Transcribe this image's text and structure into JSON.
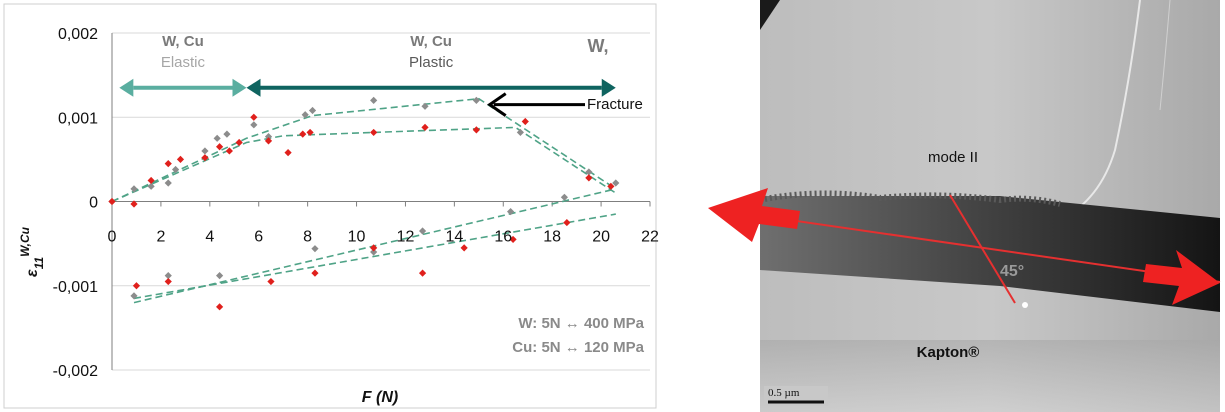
{
  "chart_data": {
    "type": "scatter",
    "x_ticks": [
      "0",
      "2",
      "4",
      "6",
      "8",
      "10",
      "12",
      "14",
      "16",
      "18",
      "20",
      "22"
    ],
    "y_ticks": [
      "0,002",
      "0,001",
      "0",
      "-0,001",
      "-0,002"
    ],
    "xlim": [
      0,
      22
    ],
    "ylim": [
      -0.002,
      0.002
    ],
    "xlabel": "F (N)",
    "ylabel": {
      "main": "ε",
      "sub": "11",
      "sup": "W,Cu"
    },
    "series": [
      {
        "color": "#8c8c8c",
        "points": [
          [
            0,
            0
          ],
          [
            0.9,
            0.00015
          ],
          [
            1.6,
            0.00018
          ],
          [
            2.3,
            0.00022
          ],
          [
            2.6,
            0.00038
          ],
          [
            3.8,
            0.0006
          ],
          [
            4.3,
            0.00075
          ],
          [
            4.7,
            0.0008
          ],
          [
            5.8,
            0.00091
          ],
          [
            6.4,
            0.00077
          ],
          [
            7.9,
            0.00103
          ],
          [
            8.2,
            0.00108
          ],
          [
            10.7,
            0.0012
          ],
          [
            12.8,
            0.00113
          ],
          [
            14.9,
            0.0012
          ],
          [
            16.7,
            0.00082
          ],
          [
            19.5,
            0.00035
          ],
          [
            20.6,
            0.00022
          ],
          [
            18.5,
            5e-05
          ],
          [
            16.3,
            -0.00012
          ],
          [
            12.7,
            -0.00035
          ],
          [
            10.7,
            -0.0006
          ],
          [
            8.3,
            -0.00056
          ],
          [
            4.4,
            -0.00088
          ],
          [
            2.3,
            -0.00088
          ],
          [
            0.9,
            -0.00112
          ]
        ]
      },
      {
        "color": "#e0201c",
        "points": [
          [
            0,
            0
          ],
          [
            0.9,
            -3e-05
          ],
          [
            1.6,
            0.00025
          ],
          [
            2.3,
            0.00045
          ],
          [
            2.8,
            0.0005
          ],
          [
            3.8,
            0.00052
          ],
          [
            4.4,
            0.00065
          ],
          [
            4.8,
            0.0006
          ],
          [
            5.2,
            0.0007
          ],
          [
            5.8,
            0.001
          ],
          [
            6.4,
            0.00072
          ],
          [
            7.2,
            0.00058
          ],
          [
            7.8,
            0.0008
          ],
          [
            8.1,
            0.00082
          ],
          [
            10.7,
            0.00082
          ],
          [
            12.8,
            0.00088
          ],
          [
            14.9,
            0.00085
          ],
          [
            16.9,
            0.00095
          ],
          [
            19.5,
            0.00028
          ],
          [
            20.4,
            0.00018
          ],
          [
            18.6,
            -0.00025
          ],
          [
            16.4,
            -0.00045
          ],
          [
            14.4,
            -0.00055
          ],
          [
            12.7,
            -0.00085
          ],
          [
            10.7,
            -0.00055
          ],
          [
            8.3,
            -0.00085
          ],
          [
            6.5,
            -0.00095
          ],
          [
            4.4,
            -0.00125
          ],
          [
            2.3,
            -0.00095
          ],
          [
            1.0,
            -0.001
          ]
        ]
      }
    ],
    "trend_lines": [
      [
        [
          0,
          0
        ],
        [
          5.5,
          0.00075
        ],
        [
          8.2,
          0.00102
        ],
        [
          15,
          0.00122
        ],
        [
          20.6,
          0.00015
        ]
      ],
      [
        [
          0,
          0
        ],
        [
          5.5,
          0.0007
        ],
        [
          7,
          0.00078
        ],
        [
          10.7,
          0.00082
        ],
        [
          16.5,
          0.00088
        ],
        [
          20.6,
          0.0001
        ]
      ],
      [
        [
          0.9,
          -0.0012
        ],
        [
          20.6,
          0.00015
        ]
      ],
      [
        [
          0.9,
          -0.00115
        ],
        [
          20.6,
          -0.00015
        ]
      ]
    ],
    "ranges": [
      {
        "from": 0.3,
        "to": 5.5,
        "y": 0.00135,
        "color": "#5aaea0",
        "line1": [
          "W",
          ", Cu"
        ],
        "line2": "Elastic"
      },
      {
        "from": 5.5,
        "to": 20.6,
        "y": 0.00135,
        "color": "#0f6460",
        "line1": [
          "W",
          ", Cu"
        ],
        "line2": "Plastic"
      }
    ],
    "right_label": "W,",
    "fracture": {
      "label": "Fracture",
      "x": 15.2,
      "y": 0.00115
    },
    "notes": [
      "W: 5N ↔ 400 MPa",
      "Cu: 5N ↔ 120 MPa"
    ],
    "grid": "horizontal"
  },
  "micrograph": {
    "mode_label": "mode II",
    "angle_label": "45°",
    "material_label": "Kapton®",
    "scale_bar": "0.5 µm"
  }
}
